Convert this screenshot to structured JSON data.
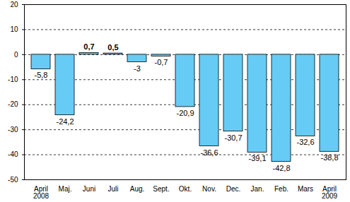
{
  "chart_data": {
    "type": "bar",
    "categories": [
      "April\n2008",
      "Maj.",
      "Juni",
      "Juli",
      "Aug.",
      "Sept.",
      "Okt.",
      "Nov.",
      "Dec.",
      "Jan.",
      "Feb.",
      "Mars",
      "April\n2009"
    ],
    "values": [
      -5.8,
      -24.2,
      0.7,
      0.5,
      -3,
      -0.7,
      -20.9,
      -36.6,
      -30.7,
      -39.1,
      -42.8,
      -32.6,
      -38.8
    ],
    "value_labels": [
      "-5,8",
      "-24,2",
      "0,7",
      "0,5",
      "-3",
      "-0,7",
      "-20,9",
      "-36,6",
      "-30,7",
      "-39,1",
      "-42,8",
      "-32,6",
      "-38,8"
    ],
    "color": "#66ccf5",
    "ylim": [
      -50,
      20
    ],
    "yticks": [
      -50,
      -40,
      -30,
      -20,
      -10,
      0,
      10,
      20
    ],
    "grid": true,
    "data_labels": true
  }
}
